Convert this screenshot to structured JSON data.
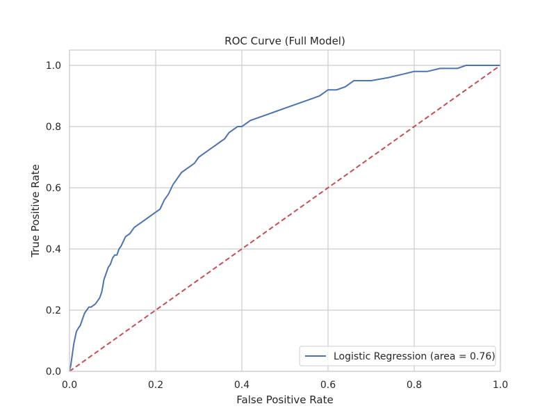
{
  "chart_data": {
    "type": "line",
    "title": "ROC Curve (Full Model)",
    "xlabel": "False Positive Rate",
    "ylabel": "True Positive Rate",
    "xlim": [
      0.0,
      1.0
    ],
    "ylim": [
      0.0,
      1.05
    ],
    "x_ticks": [
      0.0,
      0.2,
      0.4,
      0.6,
      0.8,
      1.0
    ],
    "x_tick_labels": [
      "0.0",
      "0.2",
      "0.4",
      "0.6",
      "0.8",
      "1.0"
    ],
    "y_ticks": [
      0.0,
      0.2,
      0.4,
      0.6,
      0.8,
      1.0
    ],
    "y_tick_labels": [
      "0.0",
      "0.2",
      "0.4",
      "0.6",
      "0.8",
      "1.0"
    ],
    "grid": true,
    "legend_position": "lower-right",
    "series": [
      {
        "name": "Logistic Regression (area = 0.76)",
        "color": "#4c72b0",
        "style": "solid",
        "x": [
          0.0,
          0.003,
          0.005,
          0.008,
          0.01,
          0.013,
          0.016,
          0.02,
          0.025,
          0.03,
          0.035,
          0.04,
          0.045,
          0.05,
          0.06,
          0.07,
          0.075,
          0.08,
          0.085,
          0.09,
          0.095,
          0.1,
          0.105,
          0.11,
          0.115,
          0.12,
          0.13,
          0.14,
          0.15,
          0.16,
          0.17,
          0.18,
          0.19,
          0.2,
          0.21,
          0.22,
          0.23,
          0.24,
          0.25,
          0.26,
          0.27,
          0.28,
          0.29,
          0.3,
          0.31,
          0.32,
          0.33,
          0.34,
          0.35,
          0.36,
          0.37,
          0.38,
          0.39,
          0.4,
          0.42,
          0.44,
          0.46,
          0.48,
          0.5,
          0.52,
          0.54,
          0.56,
          0.58,
          0.6,
          0.62,
          0.64,
          0.66,
          0.7,
          0.74,
          0.77,
          0.8,
          0.83,
          0.86,
          0.9,
          0.92,
          0.95,
          1.0
        ],
        "y": [
          0.0,
          0.02,
          0.04,
          0.07,
          0.09,
          0.11,
          0.13,
          0.14,
          0.15,
          0.17,
          0.19,
          0.2,
          0.21,
          0.21,
          0.22,
          0.24,
          0.26,
          0.3,
          0.32,
          0.34,
          0.35,
          0.37,
          0.38,
          0.38,
          0.4,
          0.41,
          0.44,
          0.45,
          0.47,
          0.48,
          0.49,
          0.5,
          0.51,
          0.52,
          0.53,
          0.56,
          0.58,
          0.61,
          0.63,
          0.65,
          0.66,
          0.67,
          0.68,
          0.7,
          0.71,
          0.72,
          0.73,
          0.74,
          0.75,
          0.76,
          0.78,
          0.79,
          0.8,
          0.8,
          0.82,
          0.83,
          0.84,
          0.85,
          0.86,
          0.87,
          0.88,
          0.89,
          0.9,
          0.92,
          0.92,
          0.93,
          0.95,
          0.95,
          0.96,
          0.97,
          0.98,
          0.98,
          0.99,
          0.99,
          1.0,
          1.0,
          1.0
        ]
      },
      {
        "color": "#c44e52",
        "style": "dashed",
        "x": [
          0.0,
          1.0
        ],
        "y": [
          0.0,
          1.0
        ]
      }
    ]
  }
}
